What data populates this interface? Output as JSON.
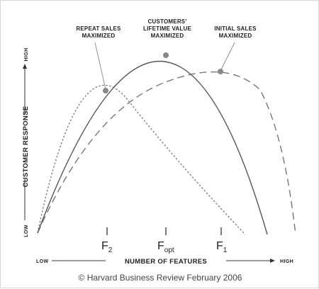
{
  "annotations": {
    "repeat_line1": "REPEAT SALES",
    "repeat_line2": "MAXIMIZED",
    "ltv_line1": "CUSTOMERS'",
    "ltv_line2": "LIFETIME VALUE",
    "ltv_line3": "MAXIMIZED",
    "initial_line1": "INITIAL SALES",
    "initial_line2": "MAXIMIZED"
  },
  "y_axis": {
    "title": "CUSTOMER RESPONSE",
    "low": "LOW",
    "high": "HIGH"
  },
  "x_axis": {
    "title": "NUMBER OF FEATURES",
    "low": "LOW",
    "high": "HIGH"
  },
  "markers": {
    "f2_main": "F",
    "f2_sub": "2",
    "fopt_main": "F",
    "fopt_sub": "opt",
    "f1_main": "F",
    "f1_sub": "1"
  },
  "credit": "© Harvard Business Review February 2006",
  "colors": {
    "curve": "#555555",
    "point": "#888888",
    "text": "#222222"
  }
}
